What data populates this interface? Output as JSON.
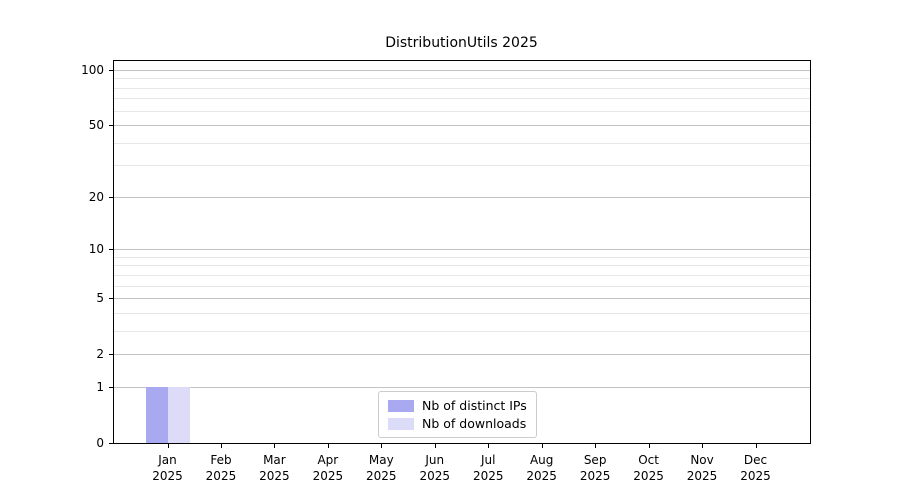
{
  "window": {
    "title": "DistributionUtils 2025"
  },
  "chart_data": {
    "type": "bar",
    "title": "DistributionUtils 2025",
    "xlabel": "",
    "ylabel": "",
    "categories": [
      "Jan 2025",
      "Feb 2025",
      "Mar 2025",
      "Apr 2025",
      "May 2025",
      "Jun 2025",
      "Jul 2025",
      "Aug 2025",
      "Sep 2025",
      "Oct 2025",
      "Nov 2025",
      "Dec 2025"
    ],
    "series": [
      {
        "name": "Nb of distinct IPs",
        "color": "#a9a9f2",
        "values": [
          1,
          0,
          0,
          0,
          0,
          0,
          0,
          0,
          0,
          0,
          0,
          0
        ]
      },
      {
        "name": "Nb of downloads",
        "color": "#dcdcf8",
        "values": [
          1,
          0,
          0,
          0,
          0,
          0,
          0,
          0,
          0,
          0,
          0,
          0
        ]
      }
    ],
    "yscale": "log10(1+y)",
    "yticks": [
      0,
      1,
      2,
      5,
      10,
      20,
      50,
      100
    ],
    "ytick_labels": [
      "0",
      "1",
      "2",
      "5",
      "10",
      "20",
      "50",
      "100"
    ],
    "yminorticks": [
      3,
      4,
      6,
      7,
      8,
      9,
      30,
      40,
      60,
      70,
      80,
      90
    ],
    "ylim": [
      0,
      113
    ],
    "grid": "both",
    "legend_position": "lower center",
    "legend_entries": [
      "Nb of distinct IPs",
      "Nb of downloads"
    ],
    "colors": {
      "bar_distinct_ips": "#a9a9f2",
      "bar_downloads": "#dcdcf8",
      "grid_major": "#c3c3c3",
      "grid_minor": "#e7e7e7",
      "spine": "#000000",
      "text": "#000000",
      "legend_border": "#cccccc",
      "background": "#ffffff"
    }
  }
}
